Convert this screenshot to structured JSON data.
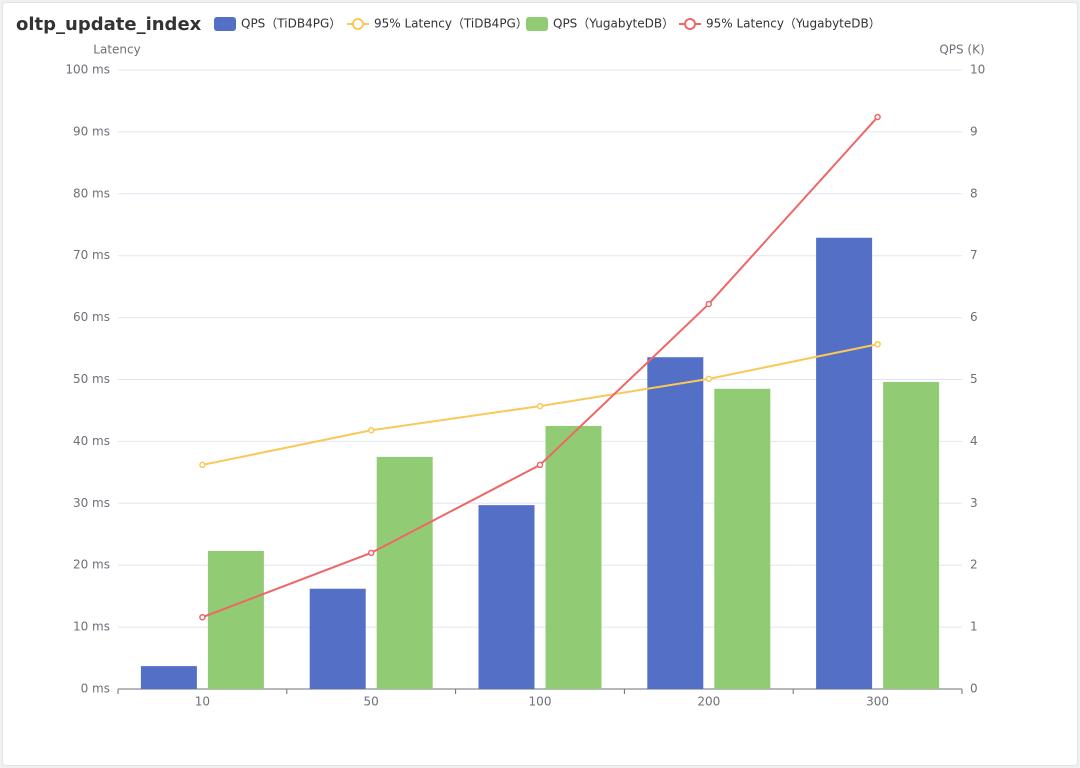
{
  "chart_data": {
    "type": "bar",
    "title": "oltp_update_index",
    "y_axis_label": "Latency",
    "y2_axis_label": "QPS (K)",
    "categories": [
      "10",
      "50",
      "100",
      "200",
      "300"
    ],
    "series": [
      {
        "name": "QPS（TiDB4PG）",
        "type": "bar",
        "axis": "y2",
        "color": "#5470c6",
        "values": [
          0.37,
          1.62,
          2.97,
          5.36,
          7.29
        ]
      },
      {
        "name": "95% Latency（TiDB4PG）",
        "type": "line",
        "color": "#fac858",
        "values": [
          36.2,
          41.8,
          45.7,
          50.1,
          55.7
        ]
      },
      {
        "name": "QPS（YugabyteDB）",
        "type": "bar",
        "axis": "y2",
        "color": "#91cc75",
        "values": [
          2.23,
          3.75,
          4.25,
          4.85,
          4.96
        ]
      },
      {
        "name": "95% Latency（YugabyteDB）",
        "type": "line",
        "color": "#ee6666",
        "values": [
          11.6,
          22.0,
          36.2,
          62.2,
          92.4
        ]
      }
    ],
    "ylim": [
      0,
      100
    ],
    "yticks": [
      {
        "value": 0,
        "label": "0 ms"
      },
      {
        "value": 10,
        "label": "10 ms"
      },
      {
        "value": 20,
        "label": "20 ms"
      },
      {
        "value": 30,
        "label": "30 ms"
      },
      {
        "value": 40,
        "label": "40 ms"
      },
      {
        "value": 50,
        "label": "50 ms"
      },
      {
        "value": 60,
        "label": "60 ms"
      },
      {
        "value": 70,
        "label": "70 ms"
      },
      {
        "value": 80,
        "label": "80 ms"
      },
      {
        "value": 90,
        "label": "90 ms"
      },
      {
        "value": 100,
        "label": "100 ms"
      }
    ],
    "y2lim": [
      0,
      10
    ],
    "y2ticks": [
      0,
      1,
      2,
      3,
      4,
      5,
      6,
      7,
      8,
      9,
      10
    ],
    "grid": true
  }
}
